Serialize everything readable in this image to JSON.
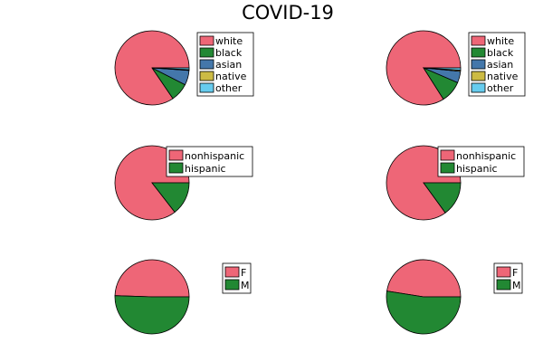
{
  "title": "COVID-19",
  "colors": {
    "white": "#ee6677",
    "black": "#228833",
    "asian": "#4477aa",
    "native": "#ccbb44",
    "other": "#66ccee",
    "nonhispanic": "#ee6677",
    "hispanic": "#228833",
    "F": "#ee6677",
    "M": "#228833"
  },
  "chart_data": [
    {
      "type": "pie",
      "title": "",
      "categories": [
        "white",
        "black",
        "asian",
        "native",
        "other"
      ],
      "values": [
        84.5,
        8.0,
        6.4,
        0.3,
        0.8
      ],
      "legend": "right"
    },
    {
      "type": "pie",
      "title": "",
      "categories": [
        "white",
        "black",
        "asian",
        "native",
        "other"
      ],
      "values": [
        84.0,
        9.5,
        5.0,
        0.5,
        1.0
      ],
      "legend": "right"
    },
    {
      "type": "pie",
      "title": "",
      "categories": [
        "nonhispanic",
        "hispanic"
      ],
      "values": [
        85.5,
        14.5
      ],
      "legend": "top-right"
    },
    {
      "type": "pie",
      "title": "",
      "categories": [
        "nonhispanic",
        "hispanic"
      ],
      "values": [
        85.0,
        15.0
      ],
      "legend": "top-right"
    },
    {
      "type": "pie",
      "title": "",
      "categories": [
        "F",
        "M"
      ],
      "values": [
        49.5,
        50.5
      ],
      "legend": "top-right"
    },
    {
      "type": "pie",
      "title": "",
      "categories": [
        "F",
        "M"
      ],
      "values": [
        47.5,
        52.5
      ],
      "legend": "top-right"
    }
  ]
}
